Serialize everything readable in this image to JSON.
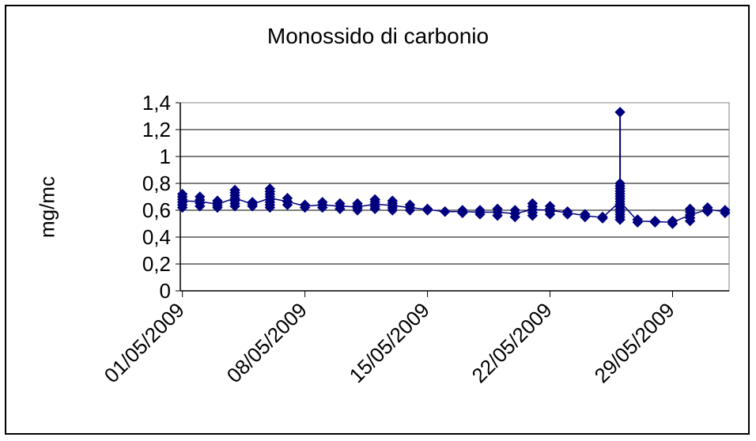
{
  "chart_data": {
    "type": "line",
    "title": "Monossido di carbonio",
    "xlabel": "",
    "ylabel": "mg/mc",
    "ylim": [
      0,
      1.4
    ],
    "y_ticks": [
      "0",
      "0,2",
      "0,4",
      "0,6",
      "0,8",
      "1",
      "1,2",
      "1,4"
    ],
    "y_tick_values": [
      0,
      0.2,
      0.4,
      0.6,
      0.8,
      1.0,
      1.2,
      1.4
    ],
    "x_range_days": [
      "01/05/2009",
      "01/06/2009"
    ],
    "x_tick_labels": [
      "01/05/2009",
      "08/05/2009",
      "15/05/2009",
      "22/05/2009",
      "29/05/2009"
    ],
    "grid": true,
    "series_color": "#00007f",
    "daily_min": [
      [
        "01/05/2009",
        0.62
      ],
      [
        "02/05/2009",
        0.63
      ],
      [
        "03/05/2009",
        0.62
      ],
      [
        "04/05/2009",
        0.63
      ],
      [
        "05/05/2009",
        0.63
      ],
      [
        "06/05/2009",
        0.62
      ],
      [
        "07/05/2009",
        0.64
      ],
      [
        "08/05/2009",
        0.62
      ],
      [
        "09/05/2009",
        0.62
      ],
      [
        "10/05/2009",
        0.61
      ],
      [
        "11/05/2009",
        0.6
      ],
      [
        "12/05/2009",
        0.61
      ],
      [
        "13/05/2009",
        0.6
      ],
      [
        "14/05/2009",
        0.6
      ],
      [
        "15/05/2009",
        0.6
      ],
      [
        "16/05/2009",
        0.59
      ],
      [
        "17/05/2009",
        0.58
      ],
      [
        "18/05/2009",
        0.57
      ],
      [
        "19/05/2009",
        0.56
      ],
      [
        "20/05/2009",
        0.55
      ],
      [
        "21/05/2009",
        0.56
      ],
      [
        "22/05/2009",
        0.57
      ],
      [
        "23/05/2009",
        0.57
      ],
      [
        "24/05/2009",
        0.55
      ],
      [
        "25/05/2009",
        0.54
      ],
      [
        "26/05/2009",
        0.53
      ],
      [
        "27/05/2009",
        0.51
      ],
      [
        "28/05/2009",
        0.51
      ],
      [
        "29/05/2009",
        0.5
      ],
      [
        "30/05/2009",
        0.52
      ],
      [
        "31/05/2009",
        0.59
      ],
      [
        "01/06/2009",
        0.58
      ]
    ],
    "daily_max": [
      [
        "01/05/2009",
        0.72
      ],
      [
        "02/05/2009",
        0.7
      ],
      [
        "03/05/2009",
        0.67
      ],
      [
        "04/05/2009",
        0.75
      ],
      [
        "05/05/2009",
        0.66
      ],
      [
        "06/05/2009",
        0.76
      ],
      [
        "07/05/2009",
        0.69
      ],
      [
        "08/05/2009",
        0.64
      ],
      [
        "09/05/2009",
        0.66
      ],
      [
        "10/05/2009",
        0.65
      ],
      [
        "11/05/2009",
        0.65
      ],
      [
        "12/05/2009",
        0.68
      ],
      [
        "13/05/2009",
        0.67
      ],
      [
        "14/05/2009",
        0.64
      ],
      [
        "15/05/2009",
        0.61
      ],
      [
        "16/05/2009",
        0.59
      ],
      [
        "17/05/2009",
        0.6
      ],
      [
        "18/05/2009",
        0.6
      ],
      [
        "19/05/2009",
        0.61
      ],
      [
        "20/05/2009",
        0.6
      ],
      [
        "21/05/2009",
        0.65
      ],
      [
        "22/05/2009",
        0.63
      ],
      [
        "23/05/2009",
        0.59
      ],
      [
        "24/05/2009",
        0.57
      ],
      [
        "25/05/2009",
        0.55
      ],
      [
        "26/05/2009",
        1.33
      ],
      [
        "27/05/2009",
        0.53
      ],
      [
        "28/05/2009",
        0.52
      ],
      [
        "29/05/2009",
        0.52
      ],
      [
        "30/05/2009",
        0.61
      ],
      [
        "31/05/2009",
        0.62
      ],
      [
        "01/06/2009",
        0.6
      ]
    ]
  }
}
